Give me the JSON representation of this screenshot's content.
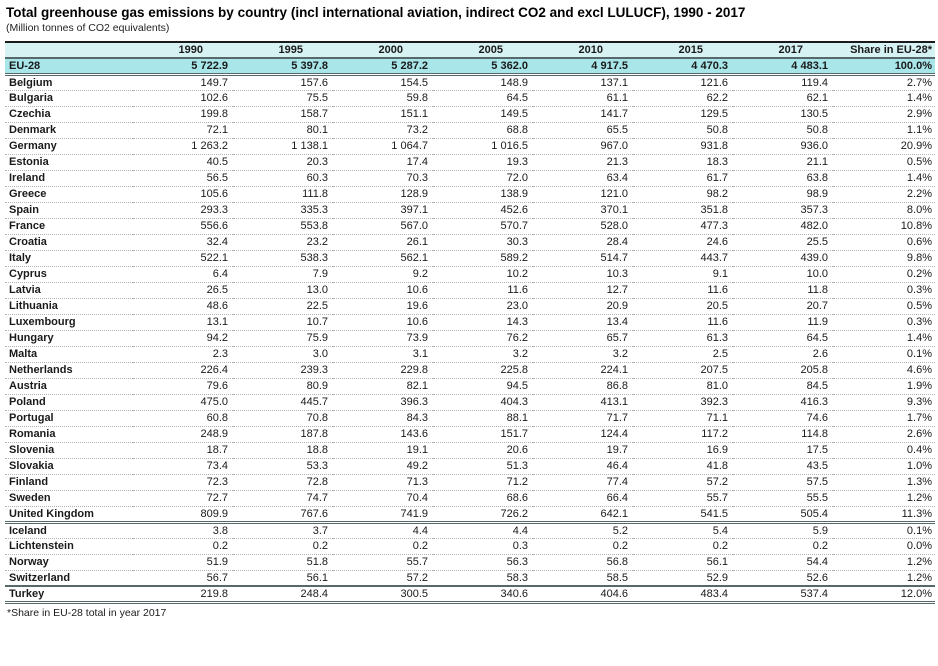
{
  "title": "Total greenhouse gas emissions by country (incl international aviation, indirect CO2 and excl LULUCF), 1990 - 2017",
  "subtitle": "(Million tonnes of CO2 equivalents)",
  "footnote": "*Share in EU-28 total in year 2017",
  "colors": {
    "header_bg": "#d7f2f3",
    "eu28_row_bg": "#a9e6ea",
    "group_border": "#56686a",
    "row_divider": "#b3b3b3",
    "text": "#1a1a1a"
  },
  "chart_data": {
    "type": "table",
    "title": "Total greenhouse gas emissions by country (incl international aviation, indirect CO2 and excl LULUCF), 1990 - 2017",
    "units": "Million tonnes of CO2 equivalents",
    "columns": [
      "",
      "1990",
      "1995",
      "2000",
      "2005",
      "2010",
      "2015",
      "2017",
      "Share in EU-28*"
    ],
    "rows": [
      {
        "name": "EU-28",
        "values": [
          "5 722.9",
          "5 397.8",
          "5 287.2",
          "5 362.0",
          "4 917.5",
          "4 470.3",
          "4 483.1"
        ],
        "share": "100.0%",
        "style": "eu28",
        "divider": "double"
      },
      {
        "name": "Belgium",
        "values": [
          "149.7",
          "157.6",
          "154.5",
          "148.9",
          "137.1",
          "121.6",
          "119.4"
        ],
        "share": "2.7%"
      },
      {
        "name": "Bulgaria",
        "values": [
          "102.6",
          "75.5",
          "59.8",
          "64.5",
          "61.1",
          "62.2",
          "62.1"
        ],
        "share": "1.4%"
      },
      {
        "name": "Czechia",
        "values": [
          "199.8",
          "158.7",
          "151.1",
          "149.5",
          "141.7",
          "129.5",
          "130.5"
        ],
        "share": "2.9%"
      },
      {
        "name": "Denmark",
        "values": [
          "72.1",
          "80.1",
          "73.2",
          "68.8",
          "65.5",
          "50.8",
          "50.8"
        ],
        "share": "1.1%"
      },
      {
        "name": "Germany",
        "values": [
          "1 263.2",
          "1 138.1",
          "1 064.7",
          "1 016.5",
          "967.0",
          "931.8",
          "936.0"
        ],
        "share": "20.9%"
      },
      {
        "name": "Estonia",
        "values": [
          "40.5",
          "20.3",
          "17.4",
          "19.3",
          "21.3",
          "18.3",
          "21.1"
        ],
        "share": "0.5%"
      },
      {
        "name": "Ireland",
        "values": [
          "56.5",
          "60.3",
          "70.3",
          "72.0",
          "63.4",
          "61.7",
          "63.8"
        ],
        "share": "1.4%"
      },
      {
        "name": "Greece",
        "values": [
          "105.6",
          "111.8",
          "128.9",
          "138.9",
          "121.0",
          "98.2",
          "98.9"
        ],
        "share": "2.2%"
      },
      {
        "name": "Spain",
        "values": [
          "293.3",
          "335.3",
          "397.1",
          "452.6",
          "370.1",
          "351.8",
          "357.3"
        ],
        "share": "8.0%"
      },
      {
        "name": "France",
        "values": [
          "556.6",
          "553.8",
          "567.0",
          "570.7",
          "528.0",
          "477.3",
          "482.0"
        ],
        "share": "10.8%"
      },
      {
        "name": "Croatia",
        "values": [
          "32.4",
          "23.2",
          "26.1",
          "30.3",
          "28.4",
          "24.6",
          "25.5"
        ],
        "share": "0.6%"
      },
      {
        "name": "Italy",
        "values": [
          "522.1",
          "538.3",
          "562.1",
          "589.2",
          "514.7",
          "443.7",
          "439.0"
        ],
        "share": "9.8%"
      },
      {
        "name": "Cyprus",
        "values": [
          "6.4",
          "7.9",
          "9.2",
          "10.2",
          "10.3",
          "9.1",
          "10.0"
        ],
        "share": "0.2%"
      },
      {
        "name": "Latvia",
        "values": [
          "26.5",
          "13.0",
          "10.6",
          "11.6",
          "12.7",
          "11.6",
          "11.8"
        ],
        "share": "0.3%"
      },
      {
        "name": "Lithuania",
        "values": [
          "48.6",
          "22.5",
          "19.6",
          "23.0",
          "20.9",
          "20.5",
          "20.7"
        ],
        "share": "0.5%"
      },
      {
        "name": "Luxembourg",
        "values": [
          "13.1",
          "10.7",
          "10.6",
          "14.3",
          "13.4",
          "11.6",
          "11.9"
        ],
        "share": "0.3%"
      },
      {
        "name": "Hungary",
        "values": [
          "94.2",
          "75.9",
          "73.9",
          "76.2",
          "65.7",
          "61.3",
          "64.5"
        ],
        "share": "1.4%"
      },
      {
        "name": "Malta",
        "values": [
          "2.3",
          "3.0",
          "3.1",
          "3.2",
          "3.2",
          "2.5",
          "2.6"
        ],
        "share": "0.1%"
      },
      {
        "name": "Netherlands",
        "values": [
          "226.4",
          "239.3",
          "229.8",
          "225.8",
          "224.1",
          "207.5",
          "205.8"
        ],
        "share": "4.6%"
      },
      {
        "name": "Austria",
        "values": [
          "79.6",
          "80.9",
          "82.1",
          "94.5",
          "86.8",
          "81.0",
          "84.5"
        ],
        "share": "1.9%"
      },
      {
        "name": "Poland",
        "values": [
          "475.0",
          "445.7",
          "396.3",
          "404.3",
          "413.1",
          "392.3",
          "416.3"
        ],
        "share": "9.3%"
      },
      {
        "name": "Portugal",
        "values": [
          "60.8",
          "70.8",
          "84.3",
          "88.1",
          "71.7",
          "71.1",
          "74.6"
        ],
        "share": "1.7%"
      },
      {
        "name": "Romania",
        "values": [
          "248.9",
          "187.8",
          "143.6",
          "151.7",
          "124.4",
          "117.2",
          "114.8"
        ],
        "share": "2.6%"
      },
      {
        "name": "Slovenia",
        "values": [
          "18.7",
          "18.8",
          "19.1",
          "20.6",
          "19.7",
          "16.9",
          "17.5"
        ],
        "share": "0.4%"
      },
      {
        "name": "Slovakia",
        "values": [
          "73.4",
          "53.3",
          "49.2",
          "51.3",
          "46.4",
          "41.8",
          "43.5"
        ],
        "share": "1.0%"
      },
      {
        "name": "Finland",
        "values": [
          "72.3",
          "72.8",
          "71.3",
          "71.2",
          "77.4",
          "57.2",
          "57.5"
        ],
        "share": "1.3%"
      },
      {
        "name": "Sweden",
        "values": [
          "72.7",
          "74.7",
          "70.4",
          "68.6",
          "66.4",
          "55.7",
          "55.5"
        ],
        "share": "1.2%"
      },
      {
        "name": "United Kingdom",
        "values": [
          "809.9",
          "767.6",
          "741.9",
          "726.2",
          "642.1",
          "541.5",
          "505.4"
        ],
        "share": "11.3%",
        "divider": "double"
      },
      {
        "name": "Iceland",
        "values": [
          "3.8",
          "3.7",
          "4.4",
          "4.4",
          "5.2",
          "5.4",
          "5.9"
        ],
        "share": "0.1%"
      },
      {
        "name": "Lichtenstein",
        "values": [
          "0.2",
          "0.2",
          "0.2",
          "0.3",
          "0.2",
          "0.2",
          "0.2"
        ],
        "share": "0.0%"
      },
      {
        "name": "Norway",
        "values": [
          "51.9",
          "51.8",
          "55.7",
          "56.3",
          "56.8",
          "56.1",
          "54.4"
        ],
        "share": "1.2%"
      },
      {
        "name": "Switzerland",
        "values": [
          "56.7",
          "56.1",
          "57.2",
          "58.3",
          "58.5",
          "52.9",
          "52.6"
        ],
        "share": "1.2%",
        "divider": "solid"
      },
      {
        "name": "Turkey",
        "values": [
          "219.8",
          "248.4",
          "300.5",
          "340.6",
          "404.6",
          "483.4",
          "537.4"
        ],
        "share": "12.0%",
        "divider": "double"
      }
    ]
  }
}
